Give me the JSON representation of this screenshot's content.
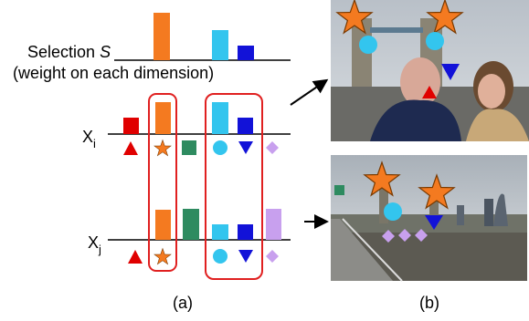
{
  "selection": {
    "label": "Selection",
    "symbol": "S",
    "note": "(weight on each dimension)"
  },
  "rows": [
    {
      "label": "X",
      "subscript": "i"
    },
    {
      "label": "X",
      "subscript": "j"
    }
  ],
  "panels": [
    "(a)",
    "(b)"
  ]
}
